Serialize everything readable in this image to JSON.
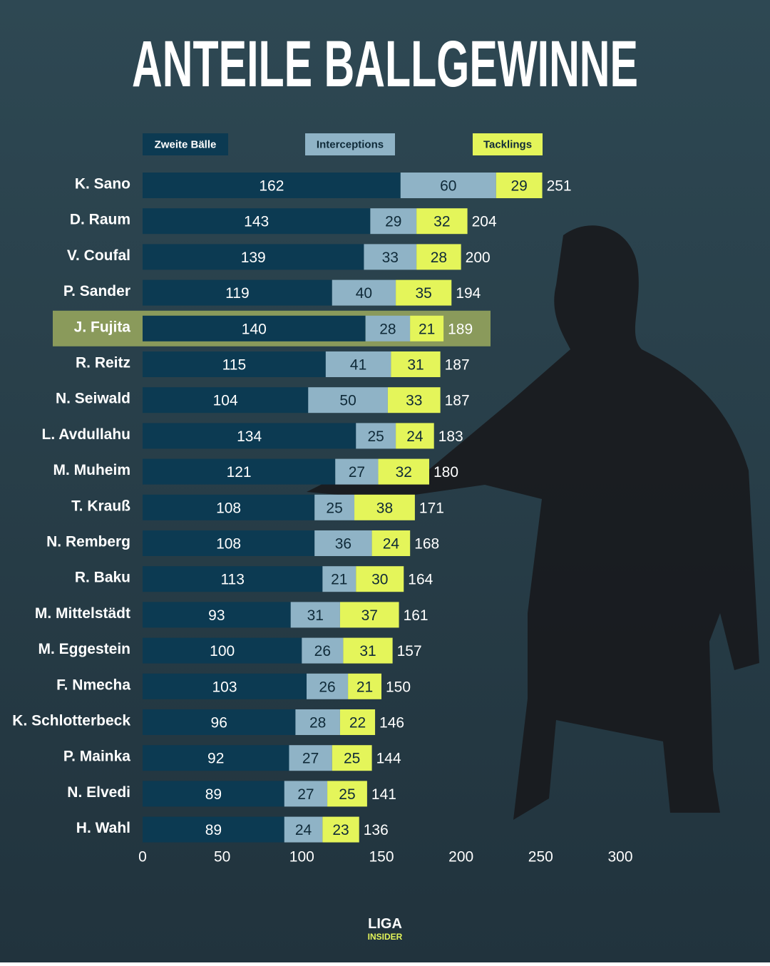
{
  "chart_data": {
    "type": "bar",
    "orientation": "horizontal",
    "stacked": true,
    "title": "ANTEILE BALLGEWINNE",
    "categories": [
      "K. Sano",
      "D. Raum",
      "V. Coufal",
      "P. Sander",
      "J. Fujita",
      "R. Reitz",
      "N. Seiwald",
      "L. Avdullahu",
      "M. Muheim",
      "T. Krauß",
      "N. Remberg",
      "R. Baku",
      "M. Mittelstädt",
      "M. Eggestein",
      "F. Nmecha",
      "K. Schlotterbeck",
      "P. Mainka",
      "N. Elvedi",
      "H. Wahl"
    ],
    "series": [
      {
        "name": "Zweite Bälle",
        "color": "#0c3a52",
        "label_color": "#ffffff",
        "values": [
          162,
          143,
          139,
          119,
          140,
          115,
          104,
          134,
          121,
          108,
          108,
          113,
          93,
          100,
          103,
          96,
          92,
          89,
          89
        ]
      },
      {
        "name": "Interceptions",
        "color": "#8fb3c6",
        "label_color": "#0f2a38",
        "values": [
          60,
          29,
          33,
          40,
          28,
          41,
          50,
          25,
          27,
          25,
          36,
          21,
          31,
          26,
          26,
          28,
          27,
          27,
          24
        ]
      },
      {
        "name": "Tacklings",
        "color": "#e4f55a",
        "label_color": "#0f2a38",
        "values": [
          29,
          32,
          28,
          35,
          21,
          31,
          33,
          24,
          32,
          38,
          24,
          30,
          37,
          31,
          21,
          22,
          25,
          25,
          23
        ]
      }
    ],
    "totals": [
      251,
      204,
      200,
      194,
      189,
      187,
      187,
      183,
      180,
      171,
      168,
      164,
      161,
      157,
      150,
      146,
      144,
      141,
      136
    ],
    "xlim": [
      0,
      300
    ],
    "xticks": [
      0,
      50,
      100,
      150,
      200,
      250,
      300
    ],
    "highlight": "J. Fujita",
    "highlight_color": "#8a9a5b"
  },
  "branding": {
    "line1": "LIGA",
    "line2": "INSIDER"
  }
}
